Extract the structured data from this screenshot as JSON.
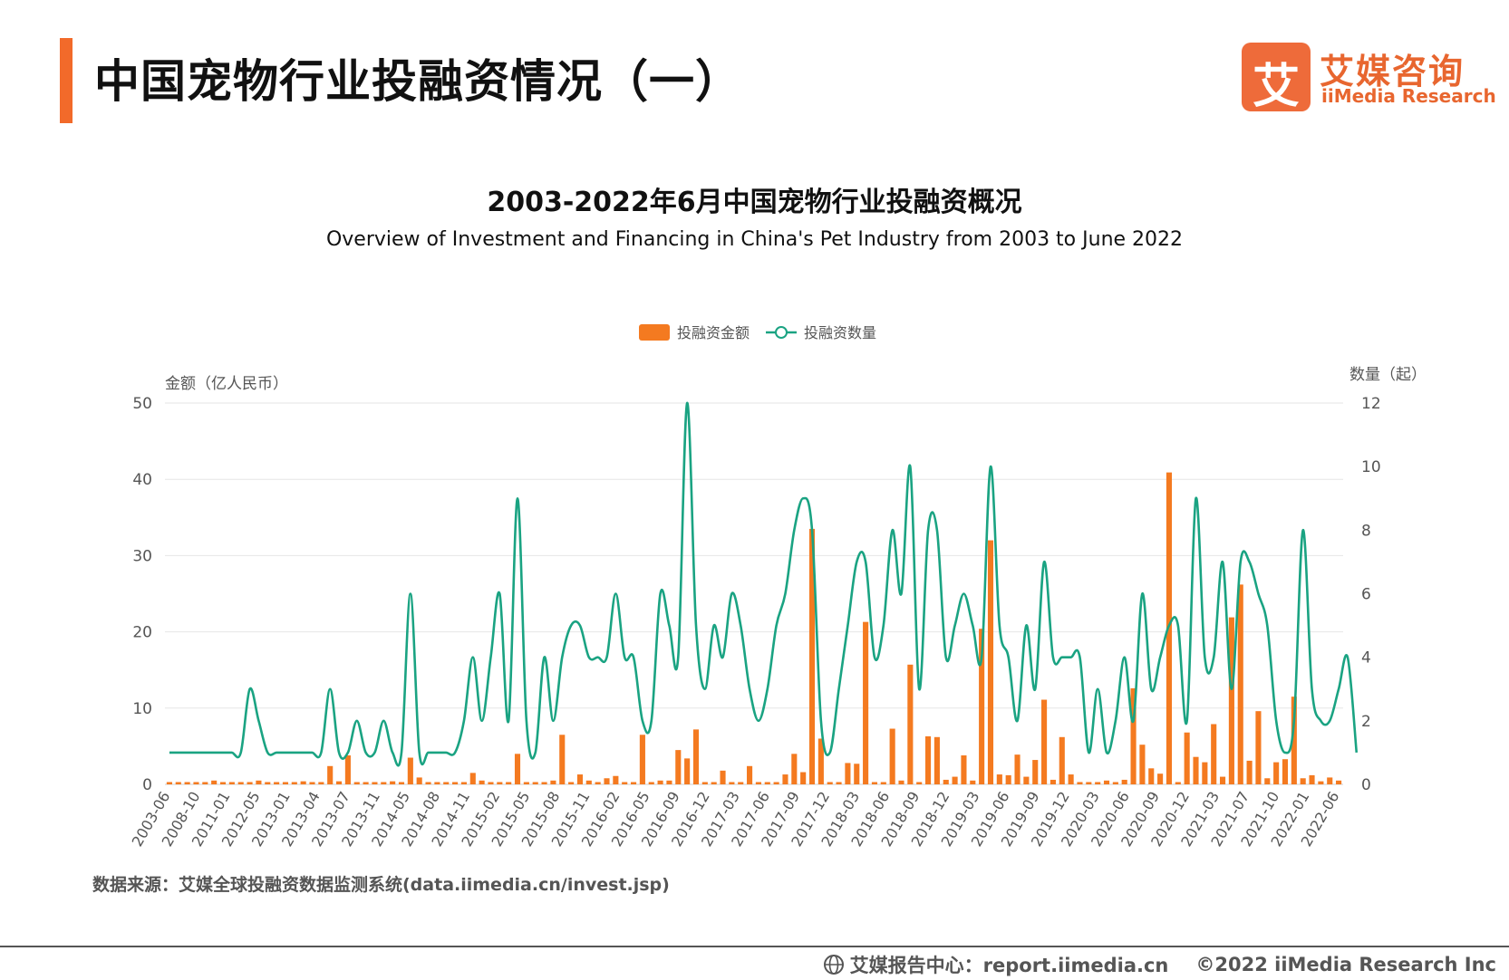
{
  "page": {
    "title": "中国宠物行业投融资情况（一）",
    "logo_cn": "艾媒咨询",
    "logo_en": "iiMedia Research",
    "logo_glyph": "艾",
    "source": "数据来源：艾媒全球投融资数据监测系统(data.iimedia.cn/invest.jsp)",
    "footer_center": "艾媒报告中心：report.iimedia.cn",
    "footer_copyright": "©2022  iiMedia Research  Inc",
    "accent_color": "#f26a2a"
  },
  "chart_data": {
    "type": "bar",
    "title": "2003-2022年6月中国宠物行业投融资概况",
    "subtitle": "Overview of Investment and Financing in China's Pet Industry from 2003 to June 2022",
    "ylabel_left": "金额（亿人民币）",
    "ylabel_right": "数量（起）",
    "ylim_left": [
      0,
      50
    ],
    "ylim_right": [
      0,
      12
    ],
    "yticks_left": [
      0,
      10,
      20,
      30,
      40,
      50
    ],
    "yticks_right": [
      0,
      2,
      4,
      6,
      8,
      10,
      12
    ],
    "grid": true,
    "legend_position": "top-center",
    "x_tick_labels": [
      "2003-06",
      "2008-10",
      "2011-01",
      "2012-05",
      "2013-01",
      "2013-04",
      "2013-07",
      "2013-11",
      "2014-05",
      "2014-08",
      "2014-11",
      "2015-02",
      "2015-05",
      "2015-08",
      "2015-11",
      "2016-02",
      "2016-05",
      "2016-09",
      "2016-12",
      "2017-03",
      "2017-06",
      "2017-09",
      "2017-12",
      "2018-03",
      "2018-06",
      "2018-09",
      "2018-12",
      "2019-03",
      "2019-06",
      "2019-09",
      "2019-12",
      "2020-03",
      "2020-06",
      "2020-09",
      "2020-12",
      "2021-03",
      "2021-07",
      "2021-10",
      "2022-01",
      "2022-06"
    ],
    "series": [
      {
        "name": "投融资金额",
        "kind": "bar",
        "axis": "left",
        "color": "#f47a20",
        "values": [
          0.3,
          0.3,
          0.3,
          0.3,
          0.3,
          0.5,
          0.3,
          0.3,
          0.3,
          0.3,
          0.5,
          0.3,
          0.3,
          0.3,
          0.3,
          0.4,
          0.3,
          0.3,
          2.4,
          0.4,
          3.8,
          0.3,
          0.3,
          0.3,
          0.3,
          0.4,
          0.3,
          3.5,
          0.9,
          0.3,
          0.3,
          0.3,
          0.3,
          0.3,
          1.5,
          0.5,
          0.3,
          0.3,
          0.3,
          4.0,
          0.3,
          0.3,
          0.3,
          0.5,
          6.5,
          0.3,
          1.3,
          0.5,
          0.3,
          0.8,
          1.1,
          0.3,
          0.3,
          6.5,
          0.3,
          0.5,
          0.5,
          4.5,
          3.4,
          7.2,
          0.3,
          0.3,
          1.8,
          0.3,
          0.3,
          2.4,
          0.3,
          0.3,
          0.3,
          1.3,
          4.0,
          1.6,
          33.5,
          6.0,
          0.3,
          0.3,
          2.8,
          2.7,
          21.3,
          0.3,
          0.3,
          7.3,
          0.5,
          15.7,
          0.3,
          6.3,
          6.2,
          0.6,
          1.0,
          3.8,
          0.5,
          20.4,
          32.0,
          1.3,
          1.2,
          3.9,
          1.0,
          3.2,
          11.1,
          0.6,
          6.2,
          1.3,
          0.3,
          0.3,
          0.3,
          0.5,
          0.3,
          0.6,
          12.6,
          5.2,
          2.1,
          1.4,
          40.9,
          0.3,
          6.8,
          3.6,
          2.9,
          7.9,
          1.0,
          21.9,
          26.2,
          3.1,
          9.6,
          0.8,
          2.9,
          3.3,
          11.5,
          0.8,
          1.2,
          0.4,
          0.9,
          0.5
        ]
      },
      {
        "name": "投融资数量",
        "kind": "line",
        "axis": "right",
        "color": "#1aa382",
        "values": [
          1,
          1,
          1,
          1,
          1,
          1,
          1,
          1,
          1,
          3,
          2,
          1,
          1,
          1,
          1,
          1,
          1,
          1,
          3,
          1,
          1,
          2,
          1,
          1,
          2,
          1,
          1,
          6,
          1,
          1,
          1,
          1,
          1,
          2,
          4,
          2,
          4,
          6,
          2,
          9,
          2,
          1,
          4,
          2,
          4,
          5,
          5,
          4,
          4,
          4,
          6,
          4,
          4,
          2,
          2,
          6,
          5,
          4,
          12,
          5,
          3,
          5,
          4,
          6,
          5,
          3,
          2,
          3,
          5,
          6,
          8,
          9,
          8,
          2,
          1,
          3,
          5,
          7,
          7,
          4,
          5,
          8,
          6,
          10,
          3,
          8,
          8,
          4,
          5,
          6,
          5,
          4,
          10,
          5,
          4,
          2,
          5,
          3,
          7,
          4,
          4,
          4,
          4,
          1,
          3,
          1,
          2,
          4,
          2,
          6,
          3,
          4,
          5,
          5,
          2,
          9,
          4,
          4,
          7,
          3,
          7,
          7,
          6,
          5,
          2,
          1,
          2,
          8,
          3,
          2,
          2,
          3,
          4,
          1
        ]
      }
    ]
  }
}
